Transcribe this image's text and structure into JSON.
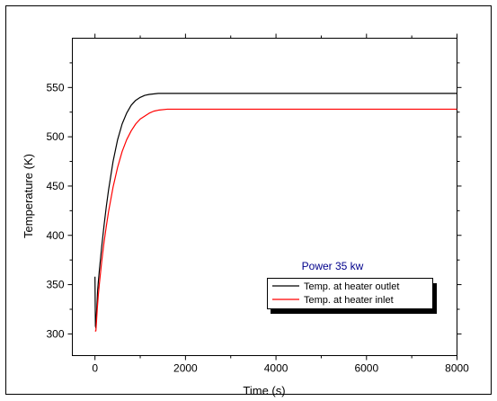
{
  "chart_data": {
    "type": "line",
    "title": "",
    "xlabel": "Time (s)",
    "ylabel": "Temperature (K)",
    "xlim": [
      -500,
      8000
    ],
    "ylim": [
      278,
      600
    ],
    "xticks": [
      0,
      2000,
      4000,
      6000,
      8000
    ],
    "xtick_labels": [
      "0",
      "2000",
      "4000",
      "6000",
      "8000"
    ],
    "yticks": [
      300,
      350,
      400,
      450,
      500,
      550
    ],
    "ytick_labels": [
      "300",
      "350",
      "400",
      "450",
      "500",
      "550"
    ],
    "grid": false,
    "legend_position": "bottom-right",
    "annotation": "Power 35 kw",
    "annotation_color": "#00008b",
    "series": [
      {
        "name": "Temp. at heater outlet",
        "color": "#000000",
        "x": [
          0,
          5,
          10,
          20,
          30,
          50,
          60,
          80,
          100,
          150,
          200,
          250,
          300,
          400,
          500,
          600,
          700,
          800,
          900,
          1000,
          1100,
          1200,
          1400,
          1600,
          2000,
          3000,
          4000,
          5000,
          6000,
          7000,
          8000
        ],
        "y": [
          358,
          330,
          308,
          306,
          318,
          335,
          345,
          356,
          366,
          389,
          410,
          429,
          446,
          475,
          497,
          513,
          524,
          532,
          537,
          540,
          542,
          543,
          544,
          544,
          544,
          544,
          544,
          544,
          544,
          544,
          544
        ]
      },
      {
        "name": "Temp. at heater inlet",
        "color": "#ff0000",
        "x": [
          0,
          20,
          30,
          50,
          75,
          100,
          150,
          200,
          250,
          300,
          400,
          500,
          600,
          700,
          800,
          900,
          1000,
          1100,
          1200,
          1300,
          1400,
          1600,
          2000,
          3000,
          4000,
          5000,
          6000,
          7000,
          8000
        ],
        "y": [
          303,
          303,
          310,
          325,
          340,
          352,
          374,
          393,
          409,
          424,
          449,
          469,
          485,
          497,
          506,
          513,
          518,
          521,
          524,
          526,
          527,
          528,
          528,
          528,
          528,
          528,
          528,
          528,
          528
        ]
      }
    ]
  }
}
